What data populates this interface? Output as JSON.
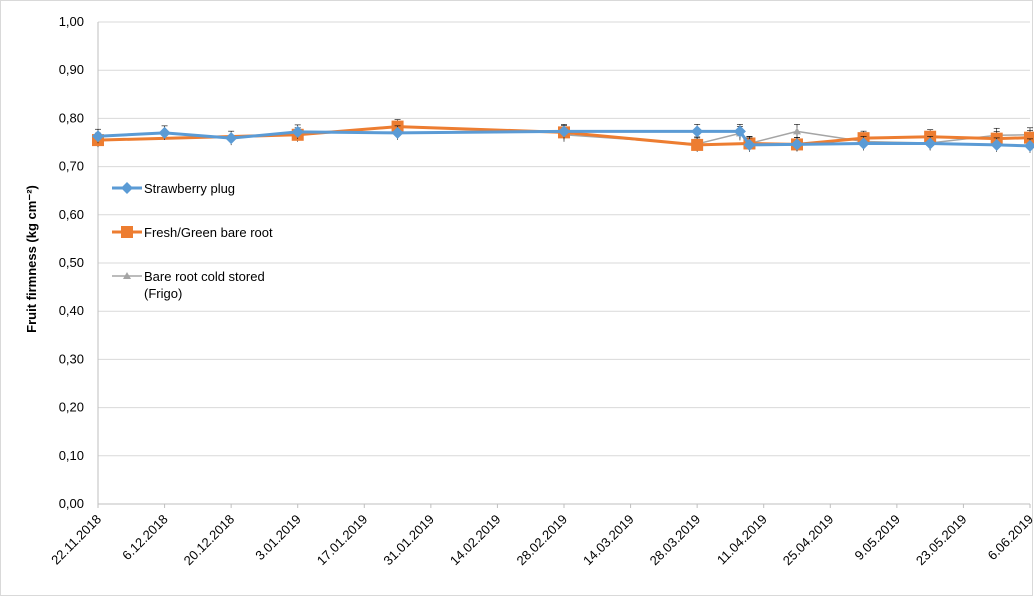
{
  "chart_data": {
    "type": "line",
    "ylabel": "Fruit firmness (kg cm⁻²)",
    "ylim": [
      0,
      1
    ],
    "y_ticks": [
      "0,00",
      "0,10",
      "0,20",
      "0,30",
      "0,40",
      "0,50",
      "0,60",
      "0,70",
      "0,80",
      "0,90",
      "1,00"
    ],
    "x_ticks": [
      "22.11.2018",
      "6.12.2018",
      "20.12.2018",
      "3.01.2019",
      "17.01.2019",
      "31.01.2019",
      "14.02.2019",
      "28.02.2019",
      "14.03.2019",
      "28.03.2019",
      "11.04.2019",
      "25.04.2019",
      "9.05.2019",
      "23.05.2019",
      "6.06.2019"
    ],
    "x_start": "2018-11-22",
    "x_end": "2019-06-06",
    "grid": true,
    "legend_position": "left-middle",
    "series": [
      {
        "name": "Strawberry plug",
        "color": "#5b9bd5",
        "marker": "diamond",
        "points": [
          {
            "x": "2018-11-22",
            "y": 0.763
          },
          {
            "x": "2018-12-06",
            "y": 0.77
          },
          {
            "x": "2018-12-20",
            "y": 0.759
          },
          {
            "x": "2019-01-03",
            "y": 0.772
          },
          {
            "x": "2019-01-24",
            "y": 0.77
          },
          {
            "x": "2019-02-28",
            "y": 0.773
          },
          {
            "x": "2019-03-28",
            "y": 0.773
          },
          {
            "x": "2019-04-06",
            "y": 0.773
          },
          {
            "x": "2019-04-08",
            "y": 0.745
          },
          {
            "x": "2019-04-18",
            "y": 0.746
          },
          {
            "x": "2019-05-02",
            "y": 0.748
          },
          {
            "x": "2019-05-16",
            "y": 0.748
          },
          {
            "x": "2019-05-30",
            "y": 0.745
          },
          {
            "x": "2019-06-06",
            "y": 0.743
          }
        ]
      },
      {
        "name": "Fresh/Green bare root",
        "color": "#ed7d31",
        "marker": "square",
        "points": [
          {
            "x": "2018-11-22",
            "y": 0.755
          },
          {
            "x": "2019-01-03",
            "y": 0.766
          },
          {
            "x": "2019-01-24",
            "y": 0.783
          },
          {
            "x": "2019-02-28",
            "y": 0.771
          },
          {
            "x": "2019-03-28",
            "y": 0.745
          },
          {
            "x": "2019-04-08",
            "y": 0.748
          },
          {
            "x": "2019-04-18",
            "y": 0.746
          },
          {
            "x": "2019-05-02",
            "y": 0.759
          },
          {
            "x": "2019-05-16",
            "y": 0.762
          },
          {
            "x": "2019-05-30",
            "y": 0.758
          },
          {
            "x": "2019-06-06",
            "y": 0.76
          }
        ]
      },
      {
        "name": "Bare root cold stored\n(Frigo)",
        "color": "#a5a5a5",
        "marker": "triangle",
        "points": [
          {
            "x": "2019-02-28",
            "y": 0.766
          },
          {
            "x": "2019-03-28",
            "y": 0.747
          },
          {
            "x": "2019-04-06",
            "y": 0.769
          },
          {
            "x": "2019-04-08",
            "y": 0.748
          },
          {
            "x": "2019-04-18",
            "y": 0.773
          },
          {
            "x": "2019-05-02",
            "y": 0.752
          },
          {
            "x": "2019-05-16",
            "y": 0.749
          },
          {
            "x": "2019-05-30",
            "y": 0.765
          },
          {
            "x": "2019-06-06",
            "y": 0.766
          }
        ]
      }
    ]
  }
}
